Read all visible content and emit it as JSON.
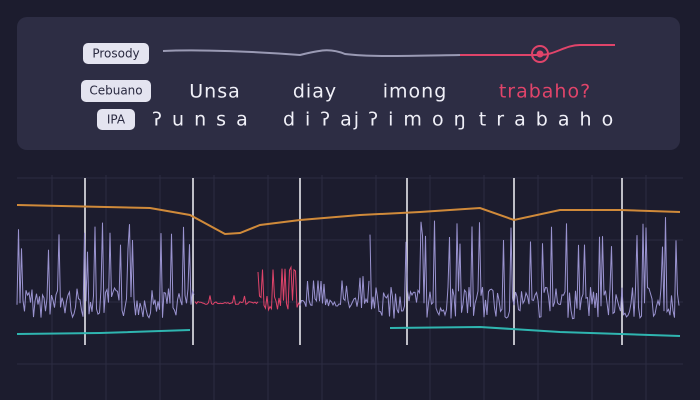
{
  "labels": {
    "prosody": "Prosody",
    "language": "Cebuano",
    "ipa": "IPA"
  },
  "words": [
    "Unsa",
    "diay",
    "imong",
    "trabaho?"
  ],
  "ipa": [
    "ʔ u n s a",
    "d i ʔ aj",
    "ʔ i m o ŋ",
    "t r a b a h o"
  ]
}
